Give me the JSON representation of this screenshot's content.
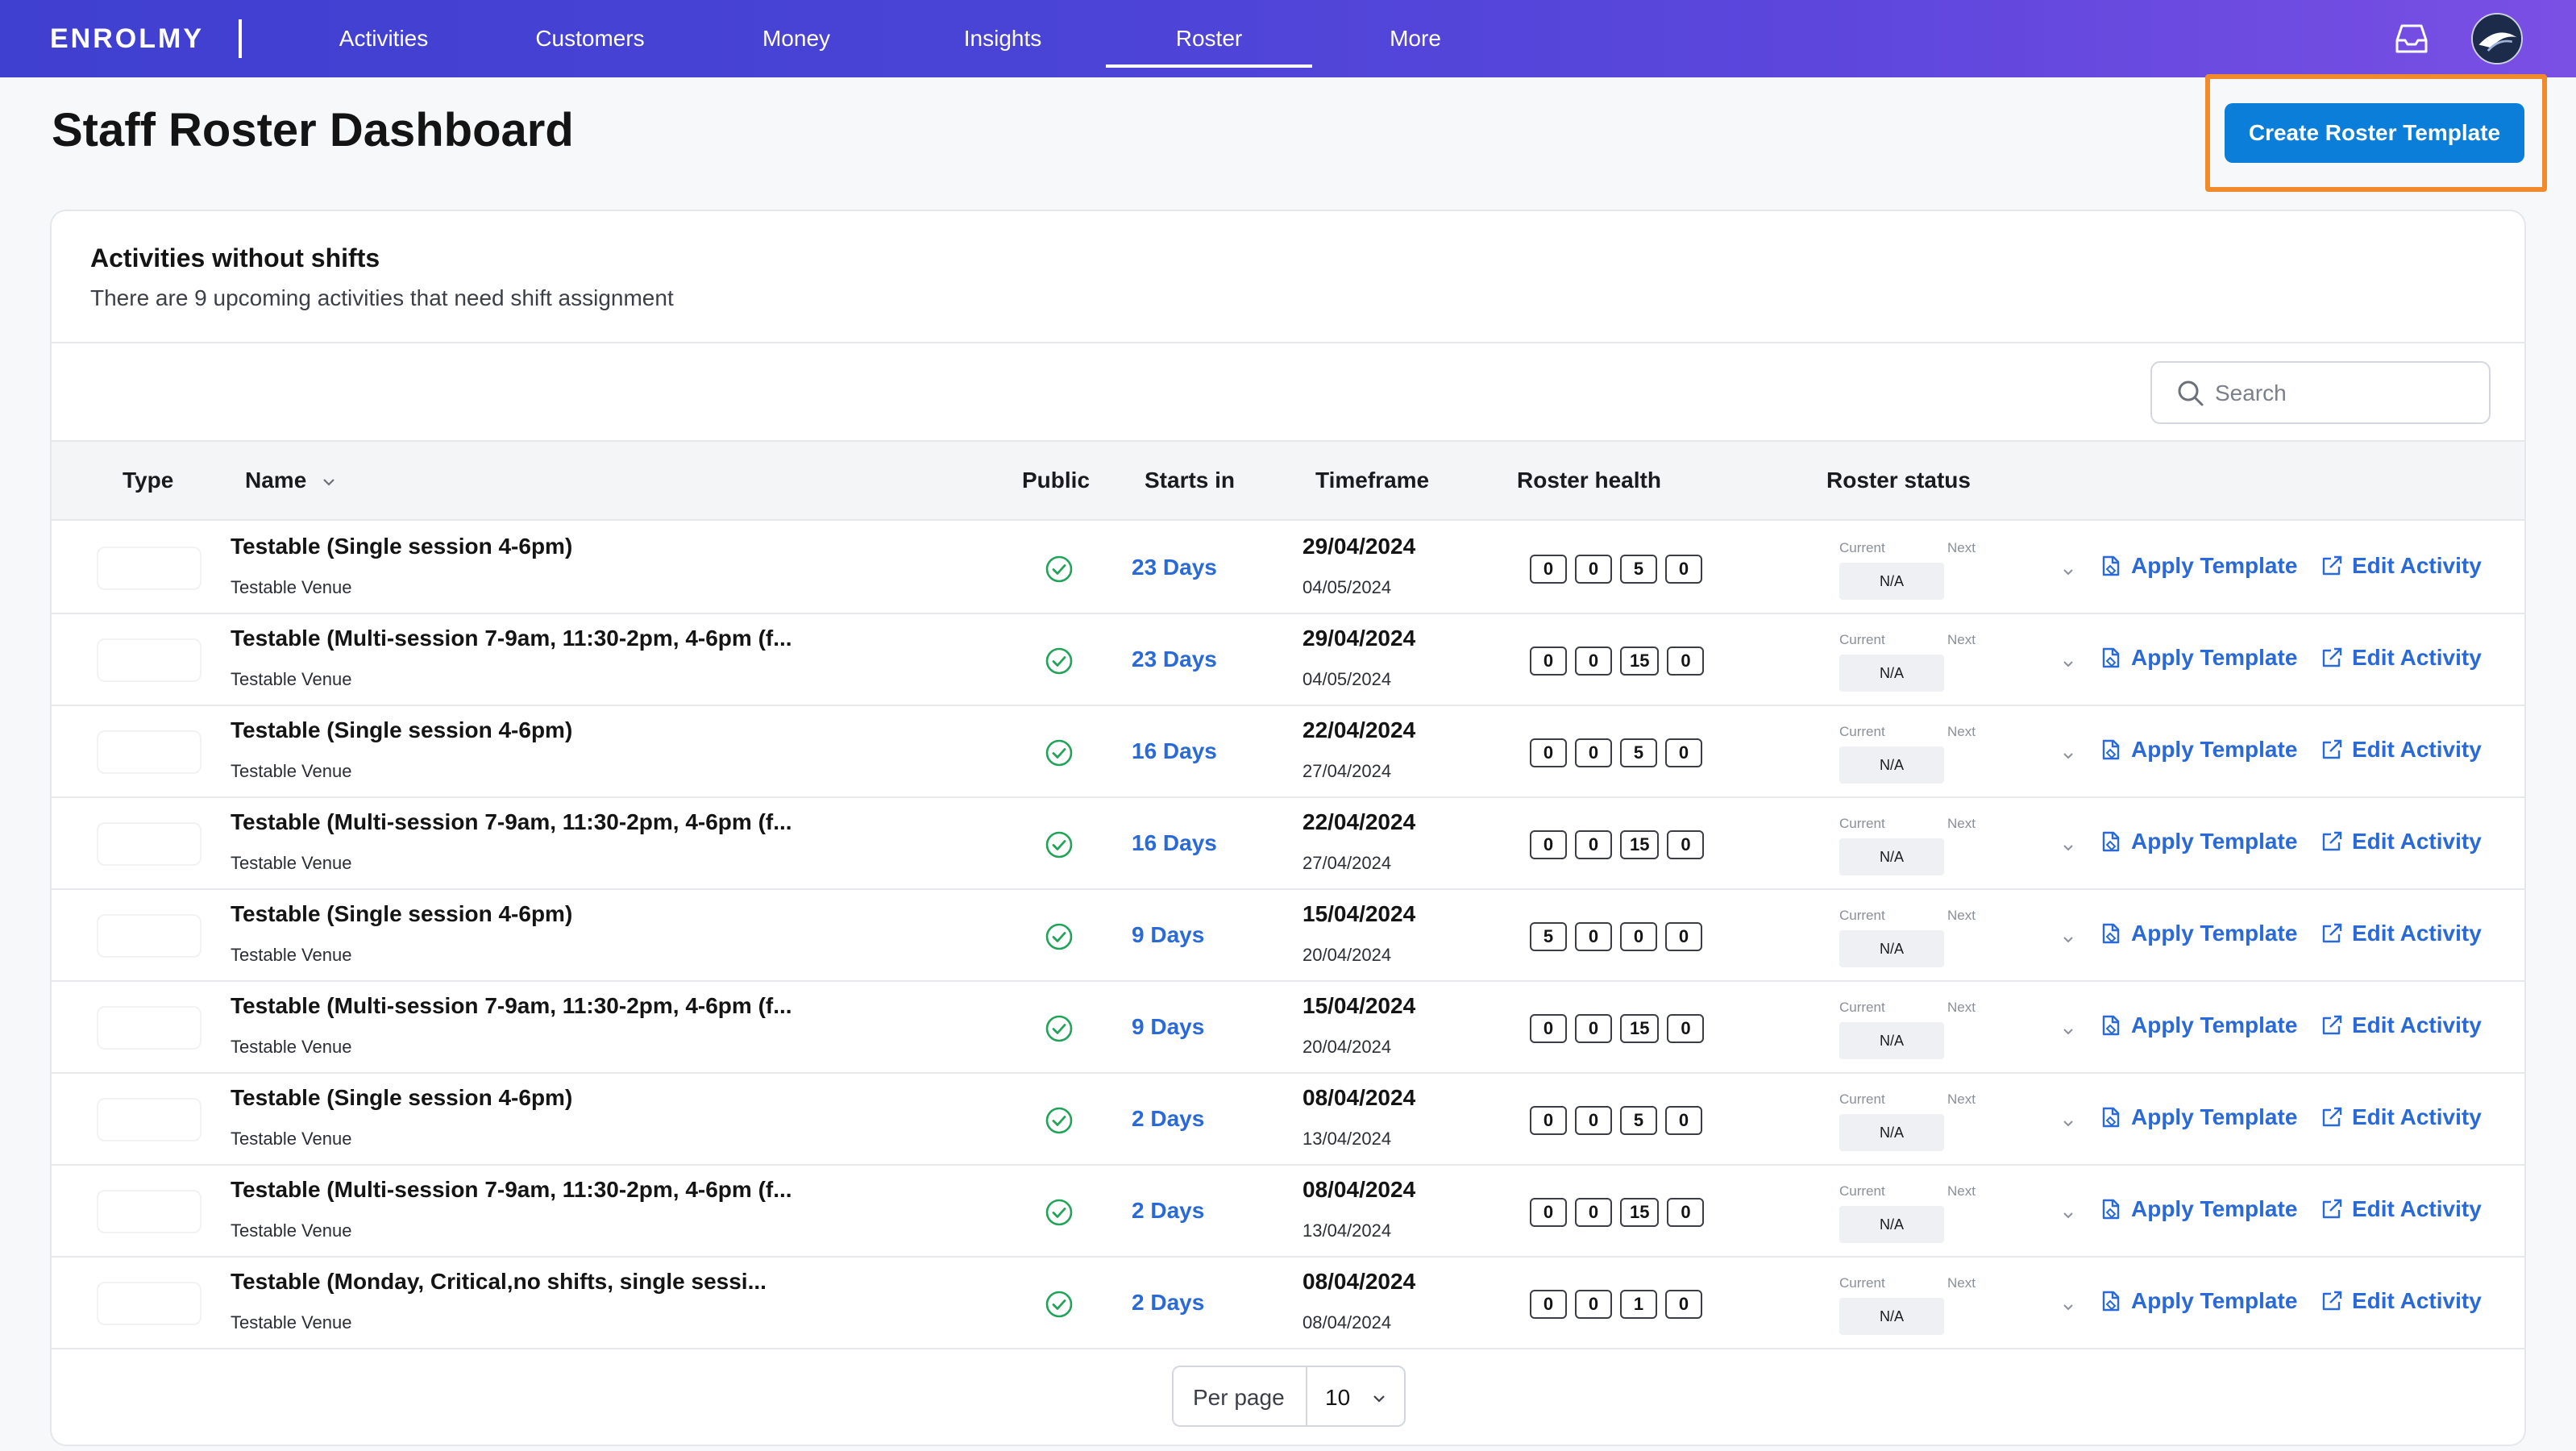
{
  "nav": {
    "logo": "ENROLMY",
    "items": [
      "Activities",
      "Customers",
      "Money",
      "Insights",
      "Roster",
      "More"
    ],
    "active": "Roster"
  },
  "page": {
    "title": "Staff Roster Dashboard",
    "create_button": "Create Roster Template"
  },
  "card": {
    "title": "Activities without shifts",
    "subtitle": "There are 9 upcoming activities that need shift assignment",
    "search_placeholder": "Search"
  },
  "table": {
    "headers": {
      "type": "Type",
      "name": "Name",
      "public": "Public",
      "starts": "Starts in",
      "timeframe": "Timeframe",
      "health": "Roster health",
      "status": "Roster status"
    },
    "status_labels": {
      "current": "Current",
      "next": "Next"
    },
    "actions": {
      "apply": "Apply Template",
      "edit": "Edit Activity"
    },
    "rows": [
      {
        "name": "Testable (Single session 4-6pm)",
        "venue": "Testable Venue",
        "starts": "23 Days",
        "start_date": "29/04/2024",
        "end_date": "04/05/2024",
        "health": [
          "0",
          "0",
          "5",
          "0"
        ],
        "status": "N/A"
      },
      {
        "name": "Testable (Multi-session 7-9am, 11:30-2pm, 4-6pm (f...",
        "venue": "Testable Venue",
        "starts": "23 Days",
        "start_date": "29/04/2024",
        "end_date": "04/05/2024",
        "health": [
          "0",
          "0",
          "15",
          "0"
        ],
        "status": "N/A"
      },
      {
        "name": "Testable (Single session 4-6pm)",
        "venue": "Testable Venue",
        "starts": "16 Days",
        "start_date": "22/04/2024",
        "end_date": "27/04/2024",
        "health": [
          "0",
          "0",
          "5",
          "0"
        ],
        "status": "N/A"
      },
      {
        "name": "Testable (Multi-session 7-9am, 11:30-2pm, 4-6pm (f...",
        "venue": "Testable Venue",
        "starts": "16 Days",
        "start_date": "22/04/2024",
        "end_date": "27/04/2024",
        "health": [
          "0",
          "0",
          "15",
          "0"
        ],
        "status": "N/A"
      },
      {
        "name": "Testable (Single session 4-6pm)",
        "venue": "Testable Venue",
        "starts": "9 Days",
        "start_date": "15/04/2024",
        "end_date": "20/04/2024",
        "health": [
          "5",
          "0",
          "0",
          "0"
        ],
        "status": "N/A"
      },
      {
        "name": "Testable (Multi-session 7-9am, 11:30-2pm, 4-6pm (f...",
        "venue": "Testable Venue",
        "starts": "9 Days",
        "start_date": "15/04/2024",
        "end_date": "20/04/2024",
        "health": [
          "0",
          "0",
          "15",
          "0"
        ],
        "status": "N/A"
      },
      {
        "name": "Testable (Single session 4-6pm)",
        "venue": "Testable Venue",
        "starts": "2 Days",
        "start_date": "08/04/2024",
        "end_date": "13/04/2024",
        "health": [
          "0",
          "0",
          "5",
          "0"
        ],
        "status": "N/A"
      },
      {
        "name": "Testable (Multi-session 7-9am, 11:30-2pm, 4-6pm (f...",
        "venue": "Testable Venue",
        "starts": "2 Days",
        "start_date": "08/04/2024",
        "end_date": "13/04/2024",
        "health": [
          "0",
          "0",
          "15",
          "0"
        ],
        "status": "N/A"
      },
      {
        "name": "Testable (Monday, Critical,no shifts, single sessi...",
        "venue": "Testable Venue",
        "starts": "2 Days",
        "start_date": "08/04/2024",
        "end_date": "08/04/2024",
        "health": [
          "0",
          "0",
          "1",
          "0"
        ],
        "status": "N/A"
      }
    ]
  },
  "pagination": {
    "label": "Per page",
    "value": "10"
  },
  "colors": {
    "accent": "#0a7ed8",
    "link": "#2a6ad8",
    "highlight": "#f08a2a",
    "success": "#22a35a"
  }
}
